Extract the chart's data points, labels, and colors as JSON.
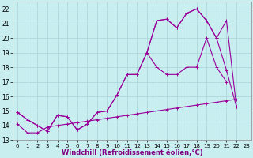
{
  "xlabel": "Windchill (Refroidissement éolien,°C)",
  "bg_color": "#c8eef0",
  "line_color": "#990099",
  "grid_color": "#aad4d8",
  "xlim": [
    -0.5,
    23.5
  ],
  "ylim": [
    13,
    22.5
  ],
  "yticks": [
    13,
    14,
    15,
    16,
    17,
    18,
    19,
    20,
    21,
    22
  ],
  "xticks": [
    0,
    1,
    2,
    3,
    4,
    5,
    6,
    7,
    8,
    9,
    10,
    11,
    12,
    13,
    14,
    15,
    16,
    17,
    18,
    19,
    20,
    21,
    22,
    23
  ],
  "line0_x": [
    0,
    1,
    2,
    3,
    4,
    5,
    6,
    7,
    8,
    9,
    10,
    11,
    12,
    13,
    14,
    15,
    16,
    17,
    18,
    19,
    20,
    21
  ],
  "line0_y": [
    14.9,
    14.4,
    14.0,
    13.6,
    14.7,
    14.6,
    13.7,
    14.1,
    14.9,
    15.0,
    16.1,
    17.5,
    17.5,
    19.0,
    18.0,
    17.5,
    17.5,
    18.0,
    18.0,
    20.0,
    18.0,
    17.0
  ],
  "line1_x": [
    0,
    1,
    2,
    3,
    4,
    5,
    6,
    7,
    8,
    9,
    10,
    11,
    12,
    13,
    14,
    15,
    16,
    17,
    18,
    19,
    20,
    21,
    22
  ],
  "line1_y": [
    14.9,
    14.4,
    14.0,
    13.6,
    14.7,
    14.6,
    13.7,
    14.1,
    14.9,
    15.0,
    16.1,
    17.5,
    17.5,
    19.0,
    21.2,
    21.3,
    20.7,
    21.7,
    22.0,
    21.2,
    20.0,
    17.8,
    15.3
  ],
  "line2_x": [
    13,
    14,
    15,
    16,
    17,
    18,
    19,
    20,
    21,
    22
  ],
  "line2_y": [
    19.0,
    21.2,
    21.3,
    20.7,
    21.7,
    22.0,
    21.2,
    20.0,
    21.2,
    15.3
  ],
  "line3_x": [
    0,
    1,
    2,
    3,
    4,
    5,
    6,
    7,
    8,
    9,
    10,
    11,
    12,
    13,
    14,
    15,
    16,
    17,
    18,
    19,
    20,
    21,
    22
  ],
  "line3_y": [
    14.1,
    13.5,
    13.5,
    13.9,
    14.0,
    14.1,
    14.2,
    14.3,
    14.4,
    14.5,
    14.6,
    14.7,
    14.8,
    14.9,
    15.0,
    15.1,
    15.2,
    15.3,
    15.4,
    15.5,
    15.6,
    15.7,
    15.8
  ]
}
